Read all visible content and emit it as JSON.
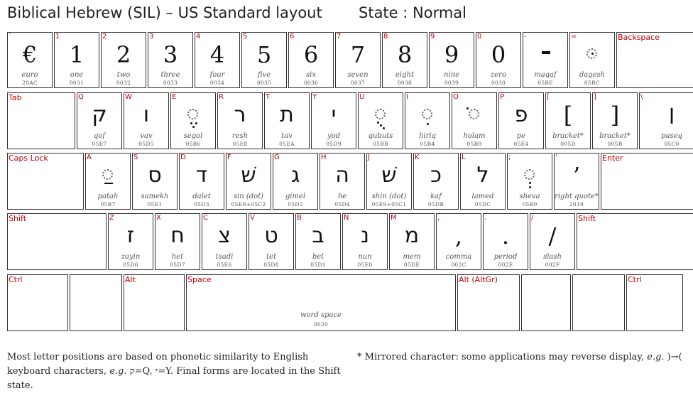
{
  "header": {
    "title": "Biblical Hebrew (SIL) – US Standard layout",
    "state": "State : Normal"
  },
  "keys": [
    {
      "r": 0,
      "label": "`",
      "glyph": "€",
      "type": "char",
      "name": "euro",
      "code": "20AC"
    },
    {
      "r": 0,
      "label": "1",
      "glyph": "1",
      "type": "char",
      "name": "one",
      "code": "0031"
    },
    {
      "r": 0,
      "label": "2",
      "glyph": "2",
      "type": "char",
      "name": "two",
      "code": "0032"
    },
    {
      "r": 0,
      "label": "3",
      "glyph": "3",
      "type": "char",
      "name": "three",
      "code": "0033"
    },
    {
      "r": 0,
      "label": "4",
      "glyph": "4",
      "type": "char",
      "name": "four",
      "code": "0034"
    },
    {
      "r": 0,
      "label": "5",
      "glyph": "5",
      "type": "char",
      "name": "five",
      "code": "0035"
    },
    {
      "r": 0,
      "label": "6",
      "glyph": "6",
      "type": "char",
      "name": "six",
      "code": "0036"
    },
    {
      "r": 0,
      "label": "7",
      "glyph": "7",
      "type": "char",
      "name": "seven",
      "code": "0037"
    },
    {
      "r": 0,
      "label": "8",
      "glyph": "8",
      "type": "char",
      "name": "eight",
      "code": "0038"
    },
    {
      "r": 0,
      "label": "9",
      "glyph": "9",
      "type": "char",
      "name": "nine",
      "code": "0039"
    },
    {
      "r": 0,
      "label": "0",
      "glyph": "0",
      "type": "char",
      "name": "zero",
      "code": "0030"
    },
    {
      "r": 0,
      "label": "-",
      "glyph": "",
      "type": "maqaf",
      "name": "maqaf",
      "code": "05BE"
    },
    {
      "r": 0,
      "label": "=",
      "glyph": "",
      "type": "dagesh",
      "name": "dagesh",
      "code": "05BC"
    },
    {
      "r": 0,
      "label": "Backspace",
      "glyph": "",
      "type": "func",
      "name": "",
      "code": ""
    },
    {
      "r": 1,
      "label": "Tab",
      "glyph": "",
      "type": "func",
      "name": "",
      "code": ""
    },
    {
      "r": 1,
      "label": "Q",
      "glyph": "ק",
      "type": "heb",
      "name": "qof",
      "code": "05E7"
    },
    {
      "r": 1,
      "label": "W",
      "glyph": "ו",
      "type": "heb",
      "name": "vav",
      "code": "05D5"
    },
    {
      "r": 1,
      "label": "E",
      "glyph": "",
      "type": "segol",
      "name": "segol",
      "code": "05B6"
    },
    {
      "r": 1,
      "label": "R",
      "glyph": "ר",
      "type": "heb",
      "name": "resh",
      "code": "05E8"
    },
    {
      "r": 1,
      "label": "T",
      "glyph": "ת",
      "type": "heb",
      "name": "tav",
      "code": "05EA"
    },
    {
      "r": 1,
      "label": "Y",
      "glyph": "י",
      "type": "heb",
      "name": "yod",
      "code": "05D9"
    },
    {
      "r": 1,
      "label": "U",
      "glyph": "",
      "type": "qubuts",
      "name": "qubuts",
      "code": "05BB"
    },
    {
      "r": 1,
      "label": "I",
      "glyph": "",
      "type": "hiriq",
      "name": "hiriq",
      "code": "05B4"
    },
    {
      "r": 1,
      "label": "O",
      "glyph": "",
      "type": "holam",
      "name": "holam",
      "code": "05B9"
    },
    {
      "r": 1,
      "label": "P",
      "glyph": "פ",
      "type": "heb",
      "name": "pe",
      "code": "05E4"
    },
    {
      "r": 1,
      "label": "[",
      "glyph": "[",
      "type": "char",
      "name": "bracket*",
      "code": "005D"
    },
    {
      "r": 1,
      "label": "]",
      "glyph": "]",
      "type": "char",
      "name": "bracket*",
      "code": "005B"
    },
    {
      "r": 1,
      "label": "\\",
      "glyph": "׀",
      "type": "heb",
      "name": "paseq",
      "code": "05C0"
    },
    {
      "r": 2,
      "label": "Caps Lock",
      "glyph": "",
      "type": "func",
      "name": "",
      "code": ""
    },
    {
      "r": 2,
      "label": "A",
      "glyph": "",
      "type": "patah",
      "name": "patah",
      "code": "05B7"
    },
    {
      "r": 2,
      "label": "S",
      "glyph": "ס",
      "type": "heb",
      "name": "samekh",
      "code": "05E1"
    },
    {
      "r": 2,
      "label": "D",
      "glyph": "ד",
      "type": "heb",
      "name": "dalet",
      "code": "05D3"
    },
    {
      "r": 2,
      "label": "F",
      "glyph": "שׁ",
      "type": "heb",
      "name": "sin (dot)",
      "code": "05E9+05C2"
    },
    {
      "r": 2,
      "label": "G",
      "glyph": "ג",
      "type": "heb",
      "name": "gimel",
      "code": "05D2"
    },
    {
      "r": 2,
      "label": "H",
      "glyph": "ה",
      "type": "heb",
      "name": "he",
      "code": "05D4"
    },
    {
      "r": 2,
      "label": "J",
      "glyph": "שׁ",
      "type": "heb",
      "name": "shin (dot)",
      "code": "05E9+05C1"
    },
    {
      "r": 2,
      "label": "K",
      "glyph": "כ",
      "type": "heb",
      "name": "kaf",
      "code": "05DB"
    },
    {
      "r": 2,
      "label": "L",
      "glyph": "ל",
      "type": "heb",
      "name": "lamed",
      "code": "05DC"
    },
    {
      "r": 2,
      "label": ";",
      "glyph": "",
      "type": "sheva",
      "name": "sheva",
      "code": "05B0"
    },
    {
      "r": 2,
      "label": "'",
      "glyph": "’",
      "type": "char",
      "name": "right quote*",
      "code": "2019"
    },
    {
      "r": 2,
      "label": "Enter",
      "glyph": "",
      "type": "func",
      "name": "",
      "code": ""
    },
    {
      "r": 3,
      "label": "Shift",
      "glyph": "",
      "type": "func",
      "name": "",
      "code": ""
    },
    {
      "r": 3,
      "label": "Z",
      "glyph": "ז",
      "type": "heb",
      "name": "zayin",
      "code": "05D6"
    },
    {
      "r": 3,
      "label": "X",
      "glyph": "ח",
      "type": "heb",
      "name": "het",
      "code": "05D7"
    },
    {
      "r": 3,
      "label": "C",
      "glyph": "צ",
      "type": "heb",
      "name": "tsadi",
      "code": "05E6"
    },
    {
      "r": 3,
      "label": "V",
      "glyph": "ט",
      "type": "heb",
      "name": "tet",
      "code": "05D8"
    },
    {
      "r": 3,
      "label": "B",
      "glyph": "ב",
      "type": "heb",
      "name": "bet",
      "code": "05D1"
    },
    {
      "r": 3,
      "label": "N",
      "glyph": "נ",
      "type": "heb",
      "name": "nun",
      "code": "05E0"
    },
    {
      "r": 3,
      "label": "M",
      "glyph": "מ",
      "type": "heb",
      "name": "mem",
      "code": "05DE"
    },
    {
      "r": 3,
      "label": ",",
      "glyph": ",",
      "type": "char",
      "name": "comma",
      "code": "002C"
    },
    {
      "r": 3,
      "label": ".",
      "glyph": ".",
      "type": "char",
      "name": "period",
      "code": "002E"
    },
    {
      "r": 3,
      "label": "/",
      "glyph": "/",
      "type": "char",
      "name": "slash",
      "code": "002F"
    },
    {
      "r": 3,
      "label": "Shift",
      "glyph": "",
      "type": "func",
      "name": "",
      "code": ""
    },
    {
      "r": 4,
      "label": "Ctrl",
      "glyph": "",
      "type": "func",
      "name": "",
      "code": ""
    },
    {
      "r": 4,
      "label": "",
      "glyph": "",
      "type": "func",
      "name": "",
      "code": ""
    },
    {
      "r": 4,
      "label": "Alt",
      "glyph": "",
      "type": "func",
      "name": "",
      "code": ""
    },
    {
      "r": 4,
      "label": "Space",
      "glyph": "",
      "type": "func",
      "name": "word space",
      "code": "0020"
    },
    {
      "r": 4,
      "label": "Alt (AltGr)",
      "glyph": "",
      "type": "func",
      "name": "",
      "code": ""
    },
    {
      "r": 4,
      "label": "",
      "glyph": "",
      "type": "func",
      "name": "",
      "code": ""
    },
    {
      "r": 4,
      "label": "",
      "glyph": "",
      "type": "func",
      "name": "",
      "code": ""
    },
    {
      "r": 4,
      "label": "Ctrl",
      "glyph": "",
      "type": "func",
      "name": "",
      "code": ""
    }
  ],
  "footnotes": {
    "left_1": "Most letter positions are based on phonetic similarity to English keyboard characters, ",
    "left_eg": "e.g.",
    "left_2": " ק=Q, י=Y. Final forms are located in the Shift state.",
    "right_1": "* Mirrored character: some applications may reverse display, ",
    "right_eg": "e.g.",
    "right_2": " )→("
  }
}
